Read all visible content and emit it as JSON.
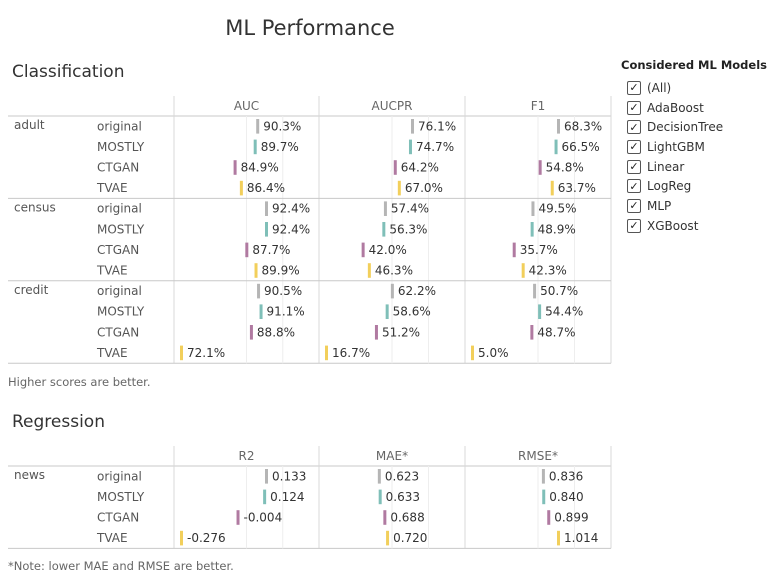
{
  "title": "ML Performance",
  "colors": {
    "original": "#b5b5b5",
    "MOSTLY": "#7fbfb8",
    "CTGAN": "#b07aa1",
    "TVAE": "#f2cf5b"
  },
  "classification": {
    "title": "Classification",
    "note": "Higher scores are better."
  },
  "regression": {
    "title": "Regression",
    "note": "*Note: lower MAE and RMSE are better."
  },
  "legend": {
    "title": "Considered ML Models",
    "items": [
      "(All)",
      "AdaBoost",
      "DecisionTree",
      "LightGBM",
      "Linear",
      "LogReg",
      "MLP",
      "XGBoost"
    ]
  },
  "chart_data": [
    {
      "type": "bar",
      "title": "Classification",
      "columns": [
        "AUC",
        "AUCPR",
        "F1"
      ],
      "rows": [
        {
          "dataset": "adult",
          "model": "original",
          "values": [
            90.3,
            76.1,
            68.3
          ],
          "labels": [
            "90.3%",
            "76.1%",
            "68.3%"
          ]
        },
        {
          "dataset": "adult",
          "model": "MOSTLY",
          "values": [
            89.7,
            74.7,
            66.5
          ],
          "labels": [
            "89.7%",
            "74.7%",
            "66.5%"
          ]
        },
        {
          "dataset": "adult",
          "model": "CTGAN",
          "values": [
            84.9,
            64.2,
            54.8
          ],
          "labels": [
            "84.9%",
            "64.2%",
            "54.8%"
          ]
        },
        {
          "dataset": "adult",
          "model": "TVAE",
          "values": [
            86.4,
            67.0,
            63.7
          ],
          "labels": [
            "86.4%",
            "67.0%",
            "63.7%"
          ]
        },
        {
          "dataset": "census",
          "model": "original",
          "values": [
            92.4,
            57.4,
            49.5
          ],
          "labels": [
            "92.4%",
            "57.4%",
            "49.5%"
          ]
        },
        {
          "dataset": "census",
          "model": "MOSTLY",
          "values": [
            92.4,
            56.3,
            48.9
          ],
          "labels": [
            "92.4%",
            "56.3%",
            "48.9%"
          ]
        },
        {
          "dataset": "census",
          "model": "CTGAN",
          "values": [
            87.7,
            42.0,
            35.7
          ],
          "labels": [
            "87.7%",
            "42.0%",
            "35.7%"
          ]
        },
        {
          "dataset": "census",
          "model": "TVAE",
          "values": [
            89.9,
            46.3,
            42.3
          ],
          "labels": [
            "89.9%",
            "46.3%",
            "42.3%"
          ]
        },
        {
          "dataset": "credit",
          "model": "original",
          "values": [
            90.5,
            62.2,
            50.7
          ],
          "labels": [
            "90.5%",
            "62.2%",
            "50.7%"
          ]
        },
        {
          "dataset": "credit",
          "model": "MOSTLY",
          "values": [
            91.1,
            58.6,
            54.4
          ],
          "labels": [
            "91.1%",
            "58.6%",
            "54.4%"
          ]
        },
        {
          "dataset": "credit",
          "model": "CTGAN",
          "values": [
            88.8,
            51.2,
            48.7
          ],
          "labels": [
            "88.8%",
            "51.2%",
            "48.7%"
          ]
        },
        {
          "dataset": "credit",
          "model": "TVAE",
          "values": [
            72.1,
            16.7,
            5.0
          ],
          "labels": [
            "72.1%",
            "16.7%",
            "5.0%"
          ]
        }
      ],
      "ranges": [
        [
          72.1,
          92.4
        ],
        [
          16.7,
          76.1
        ],
        [
          5.0,
          68.3
        ]
      ]
    },
    {
      "type": "bar",
      "title": "Regression",
      "columns": [
        "R2",
        "MAE*",
        "RMSE*"
      ],
      "rows": [
        {
          "dataset": "news",
          "model": "original",
          "values": [
            0.133,
            0.623,
            0.836
          ],
          "labels": [
            "0.133",
            "0.623",
            "0.836"
          ]
        },
        {
          "dataset": "news",
          "model": "MOSTLY",
          "values": [
            0.124,
            0.633,
            0.84
          ],
          "labels": [
            "0.124",
            "0.633",
            "0.840"
          ]
        },
        {
          "dataset": "news",
          "model": "CTGAN",
          "values": [
            -0.004,
            0.688,
            0.899
          ],
          "labels": [
            "-0.004",
            "0.688",
            "0.899"
          ]
        },
        {
          "dataset": "news",
          "model": "TVAE",
          "values": [
            -0.276,
            0.72,
            1.014
          ],
          "labels": [
            "-0.276",
            "0.720",
            "1.014"
          ]
        }
      ],
      "ranges": [
        [
          -0.276,
          0.133
        ],
        [
          0,
          1.014
        ],
        [
          0,
          1.014
        ]
      ]
    }
  ]
}
